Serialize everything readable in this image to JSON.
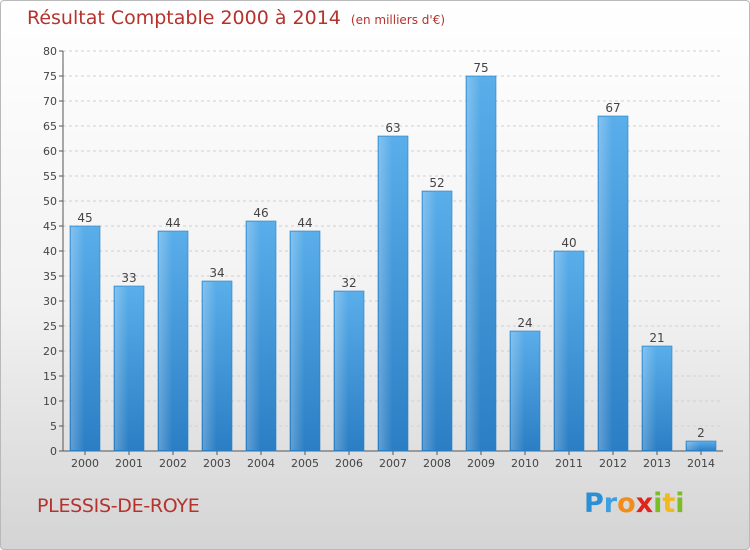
{
  "title": "Résultat Comptable 2000 à 2014",
  "subtitle": "(en milliers d'€)",
  "commune": "PLESSIS-DE-ROYE",
  "logo": {
    "letters": [
      "P",
      "r",
      "o",
      "x",
      "i",
      "t",
      "i"
    ],
    "colors": [
      "#2a8fd6",
      "#3e9fe0",
      "#f28c1a",
      "#e2231a",
      "#7cbc25",
      "#f2b81c",
      "#7cbc25"
    ]
  },
  "colors": {
    "bar": "#3f9ee3",
    "bar_light": "#66b6ef",
    "bar_dark": "#2a7fc2",
    "text_accent": "#b5322d"
  },
  "chart_data": {
    "type": "bar",
    "categories": [
      "2000",
      "2001",
      "2002",
      "2003",
      "2004",
      "2005",
      "2006",
      "2007",
      "2008",
      "2009",
      "2010",
      "2011",
      "2012",
      "2013",
      "2014"
    ],
    "values": [
      45,
      33,
      44,
      34,
      46,
      44,
      32,
      63,
      52,
      75,
      24,
      40,
      67,
      21,
      2
    ],
    "ylim": [
      0,
      80
    ],
    "yticks": [
      0,
      5,
      10,
      15,
      20,
      25,
      30,
      35,
      40,
      45,
      50,
      55,
      60,
      65,
      70,
      75,
      80
    ],
    "grid": true,
    "xlabel": "",
    "ylabel": ""
  }
}
